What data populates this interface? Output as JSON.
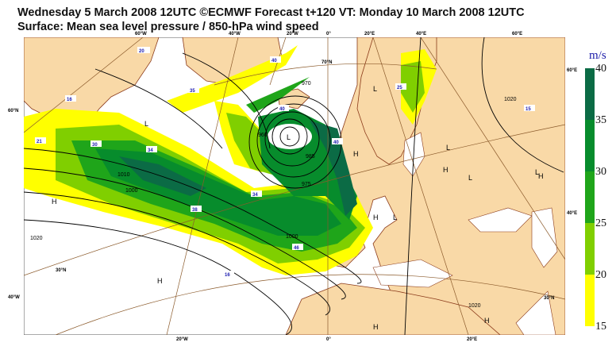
{
  "title": {
    "line1": "Wednesday 5 March 2008 12UTC ©ECMWF Forecast t+120 VT: Monday 10 March 2008 12UTC",
    "line2": "Surface: Mean sea level pressure / 850-hPa wind speed"
  },
  "axes": {
    "top": [
      "60°W",
      "40°W",
      "20°W",
      "0°",
      "20°E",
      "40°E",
      "60°E"
    ],
    "bottom": [
      "20°W",
      "0°",
      "20°E"
    ],
    "left": [
      "60°N",
      "40°W"
    ],
    "right": [
      "60°E",
      "40°E"
    ],
    "inner": [
      "70°N",
      "30°N",
      "30°N"
    ]
  },
  "colorbar": {
    "unit": "m/s",
    "ticks": [
      "40",
      "35",
      "30",
      "25",
      "20",
      "15"
    ],
    "colors": [
      "#0b6b45",
      "#078c2c",
      "#1fa51a",
      "#80cf00",
      "#ffff00"
    ]
  },
  "wind_labels": [
    "20",
    "16",
    "21",
    "30",
    "34",
    "35",
    "40",
    "40",
    "34",
    "38",
    "46",
    "16",
    "25",
    "15",
    "40"
  ],
  "pressure_labels": [
    "960",
    "970",
    "1000",
    "1010",
    "1020",
    "985",
    "975",
    "1000",
    "1020",
    "1020"
  ],
  "centres": [
    "L",
    "L",
    "L",
    "H",
    "H",
    "L",
    "H",
    "L",
    "H",
    "H",
    "H",
    "L",
    "H",
    "H",
    "L"
  ],
  "colors": {
    "land": "#f9d9a7",
    "coast": "#8b3a1a",
    "isobar": "#000000",
    "graticule": "#8b5a2b"
  }
}
